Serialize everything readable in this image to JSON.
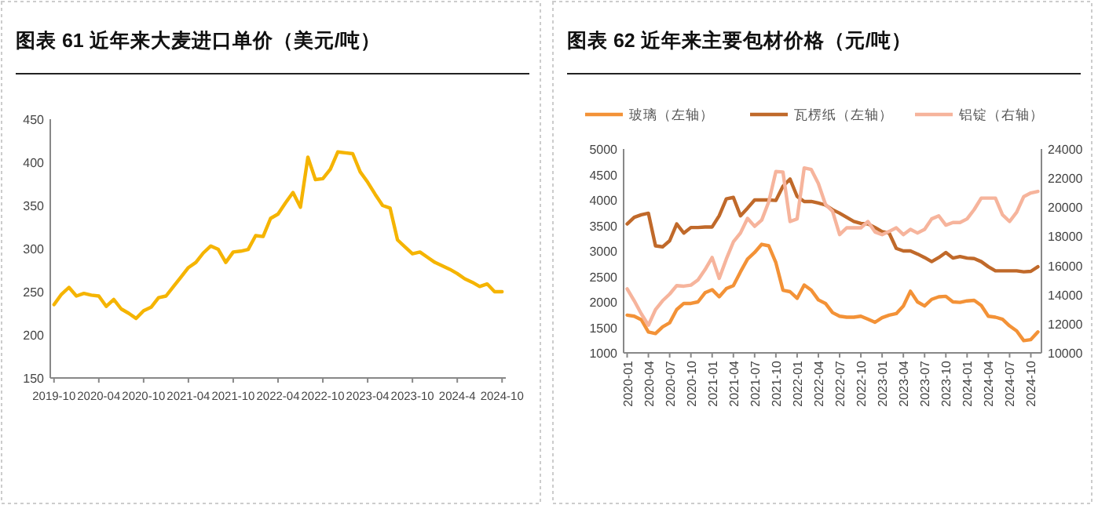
{
  "chart_data": [
    {
      "type": "line",
      "title": "图表 61   近年来大麦进口单价（美元/吨）",
      "categories": [
        "2019-10",
        null,
        null,
        null,
        null,
        null,
        "2020-04",
        null,
        null,
        null,
        null,
        null,
        "2020-10",
        null,
        null,
        null,
        null,
        null,
        "2021-04",
        null,
        null,
        null,
        null,
        null,
        "2021-10",
        null,
        null,
        null,
        null,
        null,
        "2022-04",
        null,
        null,
        null,
        null,
        null,
        "2022-10",
        null,
        null,
        null,
        null,
        null,
        "2023-04",
        null,
        null,
        null,
        null,
        null,
        "2023-10",
        null,
        null,
        null,
        null,
        null,
        "2024-4",
        null,
        null,
        null,
        null,
        null,
        "2024-10"
      ],
      "series": [
        {
          "color": "#f5b400",
          "values": [
            235,
            247,
            255,
            245,
            248,
            246,
            245,
            233,
            241,
            230,
            225,
            219,
            228,
            232,
            243,
            245,
            256,
            267,
            278,
            284,
            295,
            303,
            299,
            284,
            296,
            297,
            299,
            315,
            314,
            335,
            340,
            353,
            365,
            348,
            406,
            380,
            381,
            392,
            412,
            411,
            410,
            389,
            377,
            363,
            350,
            347,
            310,
            302,
            294,
            296,
            290,
            284,
            280,
            276,
            271,
            265,
            261,
            256,
            259,
            250,
            250
          ]
        }
      ],
      "ylim": [
        150,
        450
      ],
      "yticks": [
        150,
        200,
        250,
        300,
        350,
        400,
        450
      ]
    },
    {
      "type": "line",
      "title": "图表 62   近年来主要包材价格（元/吨）",
      "categories": [
        "2020-01",
        null,
        null,
        "2020-04",
        null,
        null,
        "2020-07",
        null,
        null,
        "2020-10",
        null,
        null,
        "2021-01",
        null,
        null,
        "2021-04",
        null,
        null,
        "2021-07",
        null,
        null,
        "2021-10",
        null,
        null,
        "2022-01",
        null,
        null,
        "2022-04",
        null,
        null,
        "2022-07",
        null,
        null,
        "2022-10",
        null,
        null,
        "2023-01",
        null,
        null,
        "2023-04",
        null,
        null,
        "2023-07",
        null,
        null,
        "2023-10",
        null,
        null,
        "2024-01",
        null,
        null,
        "2024-04",
        null,
        null,
        "2024-07",
        null,
        null,
        "2024-10",
        null
      ],
      "series": [
        {
          "name": "玻璃（左轴）",
          "color": "#f39237",
          "values": [
            1740,
            1720,
            1650,
            1410,
            1380,
            1510,
            1590,
            1850,
            1970,
            1970,
            2000,
            2180,
            2240,
            2100,
            2260,
            2320,
            2590,
            2840,
            2970,
            3130,
            3100,
            2770,
            2230,
            2200,
            2070,
            2330,
            2230,
            2040,
            1970,
            1790,
            1720,
            1700,
            1700,
            1720,
            1660,
            1600,
            1690,
            1740,
            1770,
            1920,
            2210,
            2000,
            1920,
            2050,
            2100,
            2110,
            2000,
            1990,
            2020,
            2030,
            1930,
            1720,
            1700,
            1660,
            1530,
            1430,
            1240,
            1260,
            1410
          ]
        },
        {
          "name": "瓦楞纸（左轴）",
          "color": "#c0692a",
          "values": [
            3530,
            3660,
            3710,
            3740,
            3100,
            3080,
            3200,
            3530,
            3350,
            3460,
            3460,
            3470,
            3470,
            3690,
            4020,
            4050,
            3690,
            3840,
            4000,
            4000,
            4000,
            3990,
            4270,
            4410,
            4070,
            3970,
            3970,
            3940,
            3900,
            3810,
            3740,
            3660,
            3580,
            3540,
            3530,
            3460,
            3380,
            3350,
            3050,
            3000,
            3000,
            2940,
            2870,
            2790,
            2870,
            2970,
            2860,
            2890,
            2860,
            2850,
            2790,
            2690,
            2610,
            2610,
            2610,
            2610,
            2590,
            2600,
            2690
          ]
        },
        {
          "name": "铝锭（右轴）",
          "color": "#f6b49c",
          "axis": "y2",
          "values": [
            14400,
            13580,
            12680,
            11900,
            12970,
            13580,
            14040,
            14620,
            14580,
            14650,
            15010,
            15720,
            16550,
            15120,
            16440,
            17620,
            18230,
            19230,
            18690,
            19120,
            20380,
            22450,
            22420,
            19020,
            19200,
            22700,
            22590,
            21630,
            20200,
            19730,
            18120,
            18590,
            18590,
            18590,
            19020,
            18300,
            18120,
            18340,
            18590,
            18120,
            18480,
            18230,
            18480,
            19200,
            19410,
            18770,
            18950,
            18950,
            19200,
            19840,
            20630,
            20630,
            20630,
            19480,
            19020,
            19660,
            20730,
            20980,
            21090
          ]
        }
      ],
      "ylim": [
        1000,
        5000
      ],
      "yticks": [
        1000,
        1500,
        2000,
        2500,
        3000,
        3500,
        4000,
        4500,
        5000
      ],
      "y2lim": [
        10000,
        24000
      ],
      "y2ticks": [
        10000,
        12000,
        14000,
        16000,
        18000,
        20000,
        22000,
        24000
      ],
      "legend": "top"
    }
  ]
}
